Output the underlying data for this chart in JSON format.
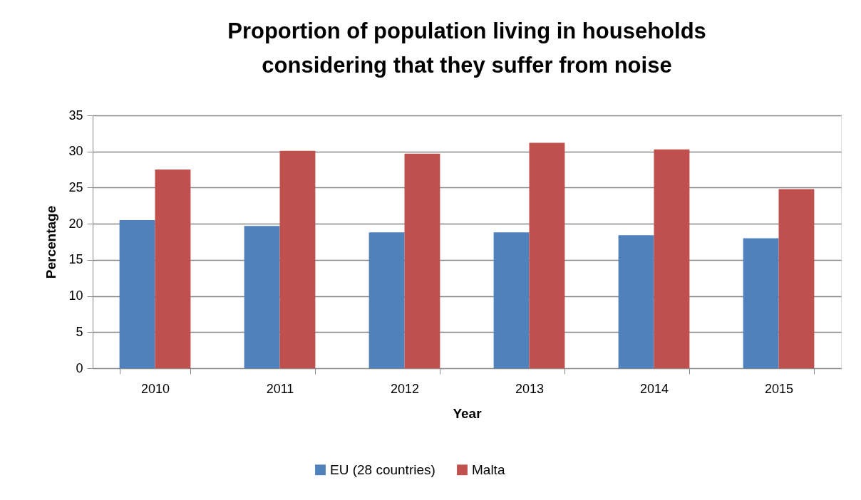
{
  "chart_data": {
    "type": "bar",
    "title": "Proportion of population living in households considering that they suffer from noise",
    "xlabel": "Year",
    "ylabel": "Percentage",
    "categories": [
      "2010",
      "2011",
      "2012",
      "2013",
      "2014",
      "2015"
    ],
    "series": [
      {
        "name": "EU (28 countries)",
        "color": "#4f81bd",
        "values": [
          20.5,
          19.7,
          18.8,
          18.8,
          18.4,
          18.0
        ]
      },
      {
        "name": "Malta",
        "color": "#c0504d",
        "values": [
          27.5,
          30.1,
          29.7,
          31.2,
          30.3,
          24.8
        ]
      }
    ],
    "ylim": [
      0,
      35
    ],
    "yticks": [
      0,
      5,
      10,
      15,
      20,
      25,
      30,
      35
    ],
    "grid": "y",
    "legend": "bottom"
  }
}
